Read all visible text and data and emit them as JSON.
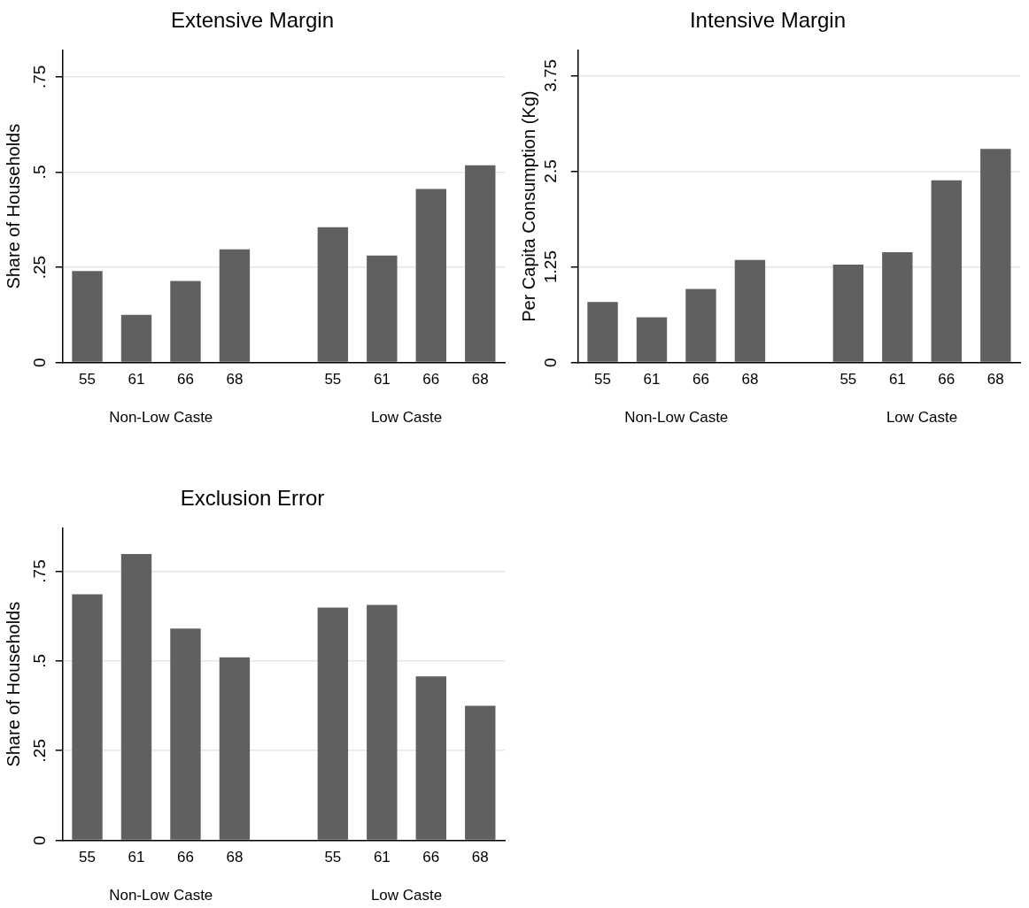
{
  "chart_data": [
    {
      "type": "bar",
      "title": "Extensive Margin",
      "ylabel": "Share of Households",
      "categories": [
        "55",
        "61",
        "66",
        "68",
        null,
        "55",
        "61",
        "66",
        "68"
      ],
      "values": [
        0.24,
        0.125,
        0.214,
        0.297,
        null,
        0.355,
        0.281,
        0.456,
        0.518
      ],
      "color": "#606060",
      "ylim": [
        0,
        0.82
      ],
      "yticks": [
        0,
        {
          "value": 0.25,
          "label": ".25"
        },
        {
          "value": 0.5,
          "label": ".5"
        },
        {
          "value": 0.75,
          "label": ".75"
        }
      ],
      "grid": "y",
      "annotations": [
        "Non-Low Caste",
        "Low Caste"
      ]
    },
    {
      "type": "bar",
      "title": "Intensive Margin",
      "ylabel": "Per Capita Consumption (Kg)",
      "categories": [
        "55",
        "61",
        "66",
        "68",
        null,
        "55",
        "61",
        "66",
        "68"
      ],
      "values": [
        0.79,
        0.59,
        0.96,
        1.34,
        null,
        1.28,
        1.44,
        2.38,
        2.79
      ],
      "color": "#606060",
      "ylim": [
        0,
        4.08
      ],
      "yticks": [
        0,
        1.25,
        2.5,
        3.75
      ],
      "grid": "y",
      "annotations": [
        "Non-Low Caste",
        "Low Caste"
      ]
    },
    {
      "type": "bar",
      "title": "Exclusion Error",
      "ylabel": "Share of Households",
      "categories": [
        "55",
        "61",
        "66",
        "68",
        null,
        "55",
        "61",
        "66",
        "68"
      ],
      "values": [
        0.686,
        0.798,
        0.59,
        0.51,
        null,
        0.649,
        0.656,
        0.457,
        0.375
      ],
      "color": "#606060",
      "ylim": [
        0,
        0.87
      ],
      "yticks": [
        0,
        {
          "value": 0.25,
          "label": ".25"
        },
        {
          "value": 0.5,
          "label": ".5"
        },
        {
          "value": 0.75,
          "label": ".75"
        }
      ],
      "grid": "y",
      "annotations": [
        "Non-Low Caste",
        "Low Caste"
      ]
    }
  ]
}
